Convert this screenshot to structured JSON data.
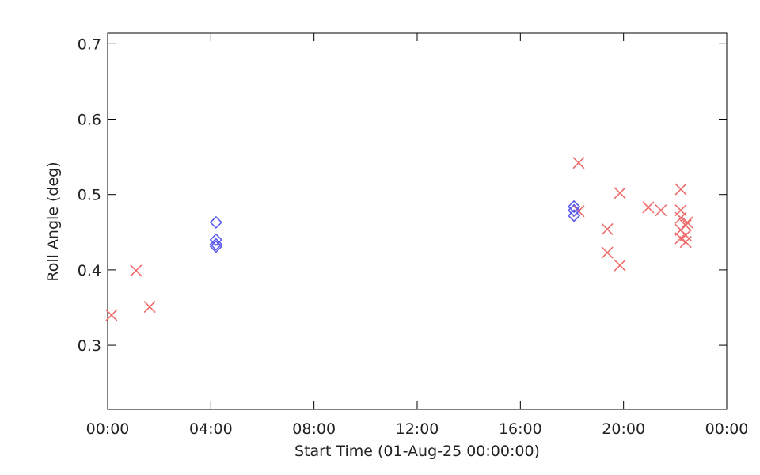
{
  "chart_data": {
    "type": "scatter",
    "x_label": "Start Time (01-Aug-25 00:00:00)",
    "y_label": "Roll Angle (deg)",
    "xlim": [
      0,
      24
    ],
    "ylim": [
      0.215,
      0.714
    ],
    "xticks": [
      {
        "value": 0,
        "label": "00:00"
      },
      {
        "value": 4,
        "label": "04:00"
      },
      {
        "value": 8,
        "label": "08:00"
      },
      {
        "value": 12,
        "label": "12:00"
      },
      {
        "value": 16,
        "label": "16:00"
      },
      {
        "value": 20,
        "label": "20:00"
      },
      {
        "value": 24,
        "label": "00:00"
      }
    ],
    "yticks": [
      0.3,
      0.4,
      0.5,
      0.6,
      0.7
    ],
    "series": [
      {
        "color": "#ee6b6b",
        "marker": "x",
        "x": [
          0.15,
          1.1,
          1.63,
          18.26,
          18.26,
          19.37,
          19.37,
          19.86,
          19.86,
          20.96,
          21.45,
          22.22,
          22.22,
          22.22,
          22.22,
          22.22,
          22.41,
          22.47,
          22.41,
          22.41
        ],
        "values": [
          0.34,
          0.399,
          0.351,
          0.542,
          0.478,
          0.454,
          0.423,
          0.502,
          0.406,
          0.483,
          0.479,
          0.507,
          0.479,
          0.469,
          0.453,
          0.442,
          0.459,
          0.463,
          0.446,
          0.437
        ]
      },
      {
        "color": "#5b5bee",
        "marker": "diamond",
        "x": [
          4.2,
          4.2,
          4.2,
          4.2,
          18.08,
          18.08,
          18.08
        ],
        "values": [
          0.463,
          0.44,
          0.434,
          0.431,
          0.484,
          0.479,
          0.472
        ]
      }
    ]
  }
}
